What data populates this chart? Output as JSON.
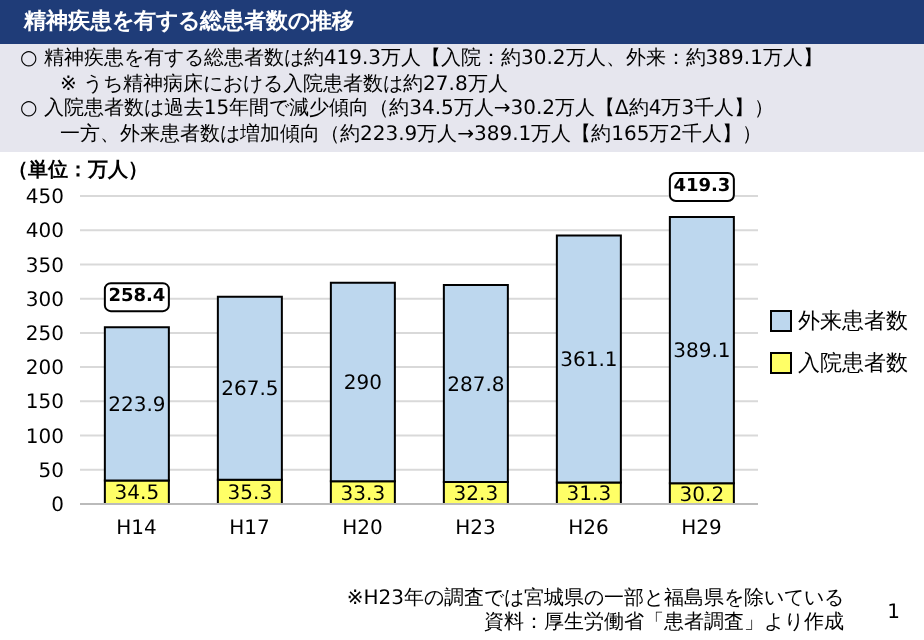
{
  "chart_data": {
    "type": "bar",
    "title": "精神疾患を有する総患者数の推移",
    "annotations": [
      "○ 精神疾患を有する総患者数は約419.3万人【入院：約30.2万人、外来：約389.1万人】",
      "※ うち精神病床における入院患者数は約27.8万人",
      "○ 入院患者数は過去15年間で減少傾向（約34.5万人→30.2万人【Δ約4万3千人】）",
      "一方、外来患者数は増加傾向（約223.9万人→389.1万人【約165万2千人】）",
      "※H23年の調査では宮城県の一部と福島県を除いている",
      "資料：厚生労働省「患者調査」より作成",
      "1"
    ],
    "ylabel": "（単位：万人）",
    "categories": [
      "H14",
      "H17",
      "H20",
      "H23",
      "H26",
      "H29"
    ],
    "series": [
      {
        "name": "入院患者数",
        "color": "#ffff66",
        "values": [
          34.5,
          35.3,
          33.3,
          32.3,
          31.3,
          30.2
        ]
      },
      {
        "name": "外来患者数",
        "color": "#bdd7ee",
        "values": [
          223.9,
          267.5,
          290,
          287.8,
          361.1,
          389.1
        ]
      }
    ],
    "stacked": true,
    "data_labels": true,
    "totals": [
      "258.4",
      null,
      null,
      null,
      null,
      "419.3"
    ],
    "ylim": [
      0,
      450
    ],
    "yticks": [
      0,
      50,
      100,
      150,
      200,
      250,
      300,
      350,
      400,
      450
    ],
    "grid": "y",
    "legend": "right"
  }
}
